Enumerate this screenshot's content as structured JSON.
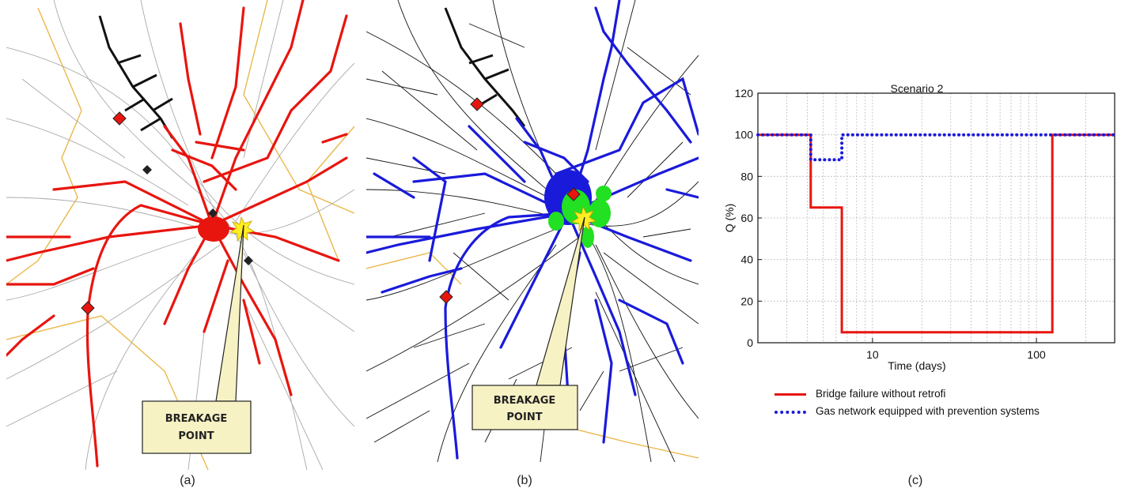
{
  "panels": {
    "a": {
      "label": "(a)",
      "callout": [
        "BREAKAGE",
        "POINT"
      ]
    },
    "b": {
      "label": "(b)",
      "callout": [
        "BREAKAGE",
        "POINT"
      ]
    },
    "c": {
      "label": "(c)"
    }
  },
  "colors": {
    "damaged_network": "#e8150f",
    "operational_network": "#1a1adb",
    "isolated_area": "#22e022",
    "gas_main": "#111111",
    "roads": "#9a9a9a",
    "boundaries": "#e9b84a",
    "callout_fill": "#f7f2c4",
    "breakage_star": "#ffee22"
  },
  "chart_data": {
    "type": "line",
    "title": "Scenario 2",
    "xlabel": "Time (days)",
    "ylabel": "Q (%)",
    "xscale": "log",
    "xlim": [
      2,
      300
    ],
    "ylim": [
      0,
      120
    ],
    "xticks": [
      10,
      100
    ],
    "xtick_labels": [
      "10",
      "100"
    ],
    "yticks": [
      0,
      20,
      40,
      60,
      80,
      100,
      120
    ],
    "ytick_labels": [
      "0",
      "20",
      "40",
      "60",
      "80",
      "100",
      "120"
    ],
    "grid": true,
    "series": [
      {
        "name": "Bridge failure without retrofi",
        "color": "#e8150f",
        "style": "solid",
        "x": [
          2,
          4.2,
          4.2,
          6.5,
          6.5,
          125,
          125,
          300
        ],
        "y": [
          100,
          100,
          65,
          65,
          5,
          5,
          100,
          100
        ]
      },
      {
        "name": "Gas network equipped with prevention systems",
        "color": "#1a1adb",
        "style": "dotted",
        "x": [
          2,
          4.2,
          4.2,
          6.5,
          6.5,
          300
        ],
        "y": [
          100,
          100,
          88,
          88,
          100,
          100
        ]
      }
    ]
  }
}
